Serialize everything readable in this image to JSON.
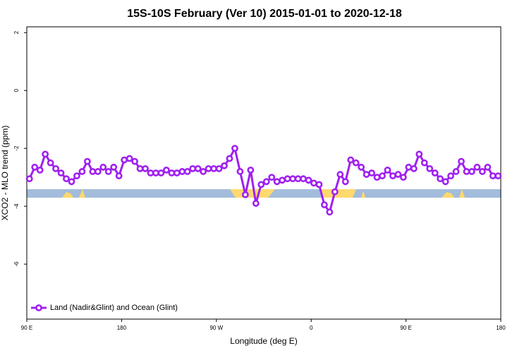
{
  "chart_data": {
    "type": "line",
    "title": "15S-10S February (Ver 10)   2015-01-01 to 2020-12-18",
    "xlabel": "Longitude (deg E)",
    "ylabel": "XCO2 - MLO trend (ppm)",
    "xlim": [
      90,
      540
    ],
    "xticks": [
      {
        "value": 90,
        "label": "90 E"
      },
      180,
      {
        "value": 270,
        "label": "90 W"
      },
      {
        "value": 360,
        "label": "0"
      },
      {
        "value": 450,
        "label": "90 E"
      },
      {
        "value": 540,
        "label": "180"
      }
    ],
    "ylim": [
      -7.9,
      2.2
    ],
    "yticks": [
      2,
      0,
      -2,
      -4,
      -6
    ],
    "grid": false,
    "legend": "bottom-left",
    "x": [
      92.5,
      97.5,
      102.5,
      107.5,
      112.5,
      117.5,
      122.5,
      127.5,
      132.5,
      137.5,
      142.5,
      147.5,
      152.5,
      157.5,
      162.5,
      167.5,
      172.5,
      177.5,
      182.5,
      187.5,
      192.5,
      197.5,
      202.5,
      207.5,
      212.5,
      217.5,
      222.5,
      227.5,
      232.5,
      237.5,
      242.5,
      247.5,
      252.5,
      257.5,
      262.5,
      267.5,
      272.5,
      277.5,
      282.5,
      287.5,
      292.5,
      297.5,
      302.5,
      307.5,
      312.5,
      317.5,
      322.5,
      327.5,
      332.5,
      337.5,
      342.5,
      347.5,
      352.5,
      357.5,
      362.5,
      367.5,
      372.5,
      377.5,
      382.5,
      387.5,
      392.5,
      397.5,
      402.5,
      407.5,
      412.5,
      417.5,
      422.5,
      427.5,
      432.5,
      437.5,
      442.5,
      447.5,
      452.5,
      457.5,
      462.5,
      467.5,
      472.5,
      477.5,
      482.5,
      487.5,
      492.5,
      497.5,
      502.5,
      507.5,
      512.5,
      517.5,
      522.5,
      527.5,
      532.5,
      537.5
    ],
    "series": [
      {
        "name": "Land (Nadir&Glint) and Ocean (Glint)",
        "color": "#a020f0",
        "values": [
          -3.05,
          -2.65,
          -2.75,
          -2.2,
          -2.5,
          -2.7,
          -2.85,
          -3.05,
          -3.15,
          -2.95,
          -2.8,
          -2.45,
          -2.8,
          -2.8,
          -2.65,
          -2.8,
          -2.65,
          -2.95,
          -2.4,
          -2.35,
          -2.45,
          -2.7,
          -2.7,
          -2.85,
          -2.85,
          -2.85,
          -2.75,
          -2.85,
          -2.85,
          -2.8,
          -2.8,
          -2.7,
          -2.7,
          -2.8,
          -2.7,
          -2.7,
          -2.7,
          -2.6,
          -2.35,
          -2.0,
          -2.8,
          -3.6,
          -2.75,
          -3.9,
          -3.25,
          -3.15,
          -3.0,
          -3.15,
          -3.1,
          -3.05,
          -3.05,
          -3.05,
          -3.05,
          -3.1,
          -3.2,
          -3.25,
          -3.95,
          -4.2,
          -3.5,
          -2.9,
          -3.15,
          -2.4,
          -2.5,
          -2.65,
          -2.9,
          -2.85,
          -3.0,
          -2.95,
          -2.75,
          -2.95,
          -2.9,
          -3.0,
          -2.65,
          -2.7,
          -2.2,
          -2.5,
          -2.7,
          -2.85,
          -3.05,
          -3.15,
          -2.95,
          -2.8,
          -2.45,
          -2.8,
          -2.8,
          -2.65,
          -2.8,
          -2.65,
          -2.95,
          -2.95
        ]
      }
    ]
  }
}
